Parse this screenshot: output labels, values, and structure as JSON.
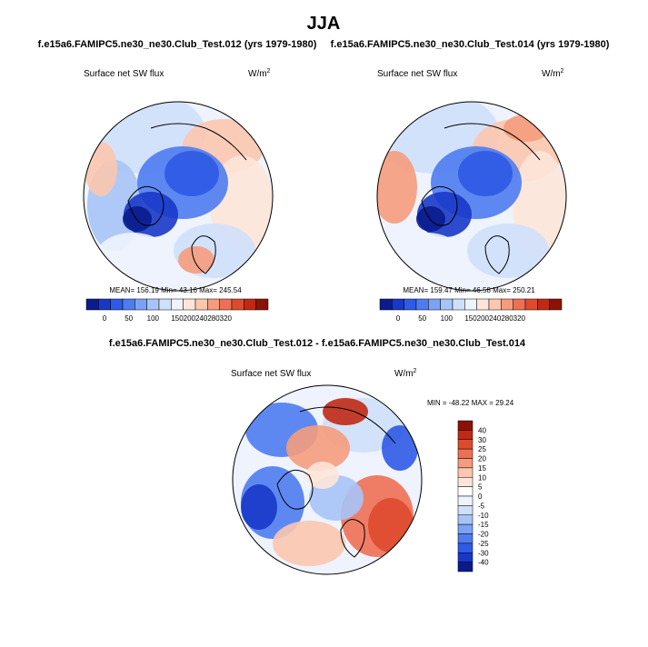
{
  "title": "JJA",
  "chart_data": [
    {
      "type": "heatmap",
      "projection": "north-polar-stereographic",
      "title": "f.e15a6.FAMIPC5.ne30_ne30.Club_Test.012 (yrs 1979-1980)",
      "variable": "Surface net SW flux",
      "units_base": "W/m",
      "units_exp": "2",
      "stats": {
        "mean_label": "MEAN=",
        "mean": "156.19",
        "min_label": "Min=",
        "min": "43.16",
        "max_label": "Max=",
        "max": "245.54"
      },
      "colorbar": {
        "orientation": "horizontal",
        "ticks": [
          "0",
          "50",
          "100",
          "150",
          "200",
          "240",
          "280",
          "320"
        ],
        "colors": [
          "#0a1c8c",
          "#1838c8",
          "#2e5ae6",
          "#4e7cf0",
          "#7aa3f5",
          "#a6c4f7",
          "#cfe0fb",
          "#eef3fd",
          "#fde6d8",
          "#fbc7ae",
          "#f59c7c",
          "#ee7054",
          "#de4a2e",
          "#c02a14",
          "#8c1206"
        ]
      }
    },
    {
      "type": "heatmap",
      "projection": "north-polar-stereographic",
      "title": "f.e15a6.FAMIPC5.ne30_ne30.Club_Test.014 (yrs 1979-1980)",
      "variable": "Surface net SW flux",
      "units_base": "W/m",
      "units_exp": "2",
      "stats": {
        "mean_label": "MEAN=",
        "mean": "159.47",
        "min_label": "Min=",
        "min": "46.58",
        "max_label": "Max=",
        "max": "250.21"
      },
      "colorbar": {
        "orientation": "horizontal",
        "ticks": [
          "0",
          "50",
          "100",
          "150",
          "200",
          "240",
          "280",
          "320"
        ],
        "colors": [
          "#0a1c8c",
          "#1838c8",
          "#2e5ae6",
          "#4e7cf0",
          "#7aa3f5",
          "#a6c4f7",
          "#cfe0fb",
          "#eef3fd",
          "#fde6d8",
          "#fbc7ae",
          "#f59c7c",
          "#ee7054",
          "#de4a2e",
          "#c02a14",
          "#8c1206"
        ]
      }
    },
    {
      "type": "heatmap",
      "projection": "north-polar-stereographic",
      "title": "f.e15a6.FAMIPC5.ne30_ne30.Club_Test.012 - f.e15a6.FAMIPC5.ne30_ne30.Club_Test.014",
      "variable": "Surface net SW flux",
      "units_base": "W/m",
      "units_exp": "2",
      "stats_text": "MIN = -48.22 MAX =  29.24",
      "colorbar": {
        "orientation": "vertical",
        "ticks": [
          "40",
          "30",
          "25",
          "20",
          "15",
          "10",
          "5",
          "0",
          "-5",
          "-10",
          "-15",
          "-20",
          "-25",
          "-30",
          "-40"
        ],
        "colors": [
          "#8c1206",
          "#c02a14",
          "#de4a2e",
          "#ee7054",
          "#f59c7c",
          "#fbc7ae",
          "#fde6d8",
          "#ffffff",
          "#eef3fd",
          "#cfe0fb",
          "#a6c4f7",
          "#7aa3f5",
          "#4e7cf0",
          "#2e5ae6",
          "#1838c8",
          "#0a1c8c"
        ]
      }
    }
  ]
}
